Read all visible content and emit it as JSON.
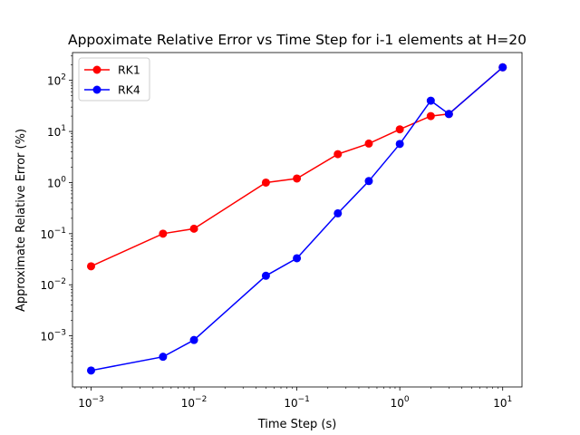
{
  "chart_data": {
    "type": "line",
    "title": "Appoximate Relative Error vs Time Step for i-1 elements at H=20",
    "xlabel": "Time Step (s)",
    "ylabel": "Approximate Relative Error (%)",
    "xscale": "log",
    "yscale": "log",
    "xlim": [
      0.00066,
      15.4
    ],
    "ylim": [
      0.0001,
      350
    ],
    "x_ticks": [
      {
        "value": 0.001,
        "base": "10",
        "exp": "−3"
      },
      {
        "value": 0.01,
        "base": "10",
        "exp": "−2"
      },
      {
        "value": 0.1,
        "base": "10",
        "exp": "−1"
      },
      {
        "value": 1,
        "base": "10",
        "exp": "0"
      },
      {
        "value": 10,
        "base": "10",
        "exp": "1"
      }
    ],
    "y_ticks": [
      {
        "value": 0.001,
        "base": "10",
        "exp": "−3"
      },
      {
        "value": 0.01,
        "base": "10",
        "exp": "−2"
      },
      {
        "value": 0.1,
        "base": "10",
        "exp": "−1"
      },
      {
        "value": 1,
        "base": "10",
        "exp": "0"
      },
      {
        "value": 10,
        "base": "10",
        "exp": "1"
      },
      {
        "value": 100,
        "base": "10",
        "exp": "2"
      }
    ],
    "x": [
      0.001,
      0.005,
      0.01,
      0.05,
      0.1,
      0.25,
      0.5,
      1,
      2,
      3,
      10
    ],
    "series": [
      {
        "name": "RK1",
        "color": "#ff0000",
        "values": [
          0.023,
          0.1,
          0.125,
          1.0,
          1.2,
          3.6,
          5.8,
          11,
          20,
          22,
          180
        ]
      },
      {
        "name": "RK4",
        "color": "#0000ff",
        "values": [
          0.00021,
          0.00039,
          0.00083,
          0.015,
          0.033,
          0.25,
          1.07,
          5.7,
          40,
          22,
          180
        ]
      }
    ],
    "legend": "top-left",
    "grid": false
  }
}
